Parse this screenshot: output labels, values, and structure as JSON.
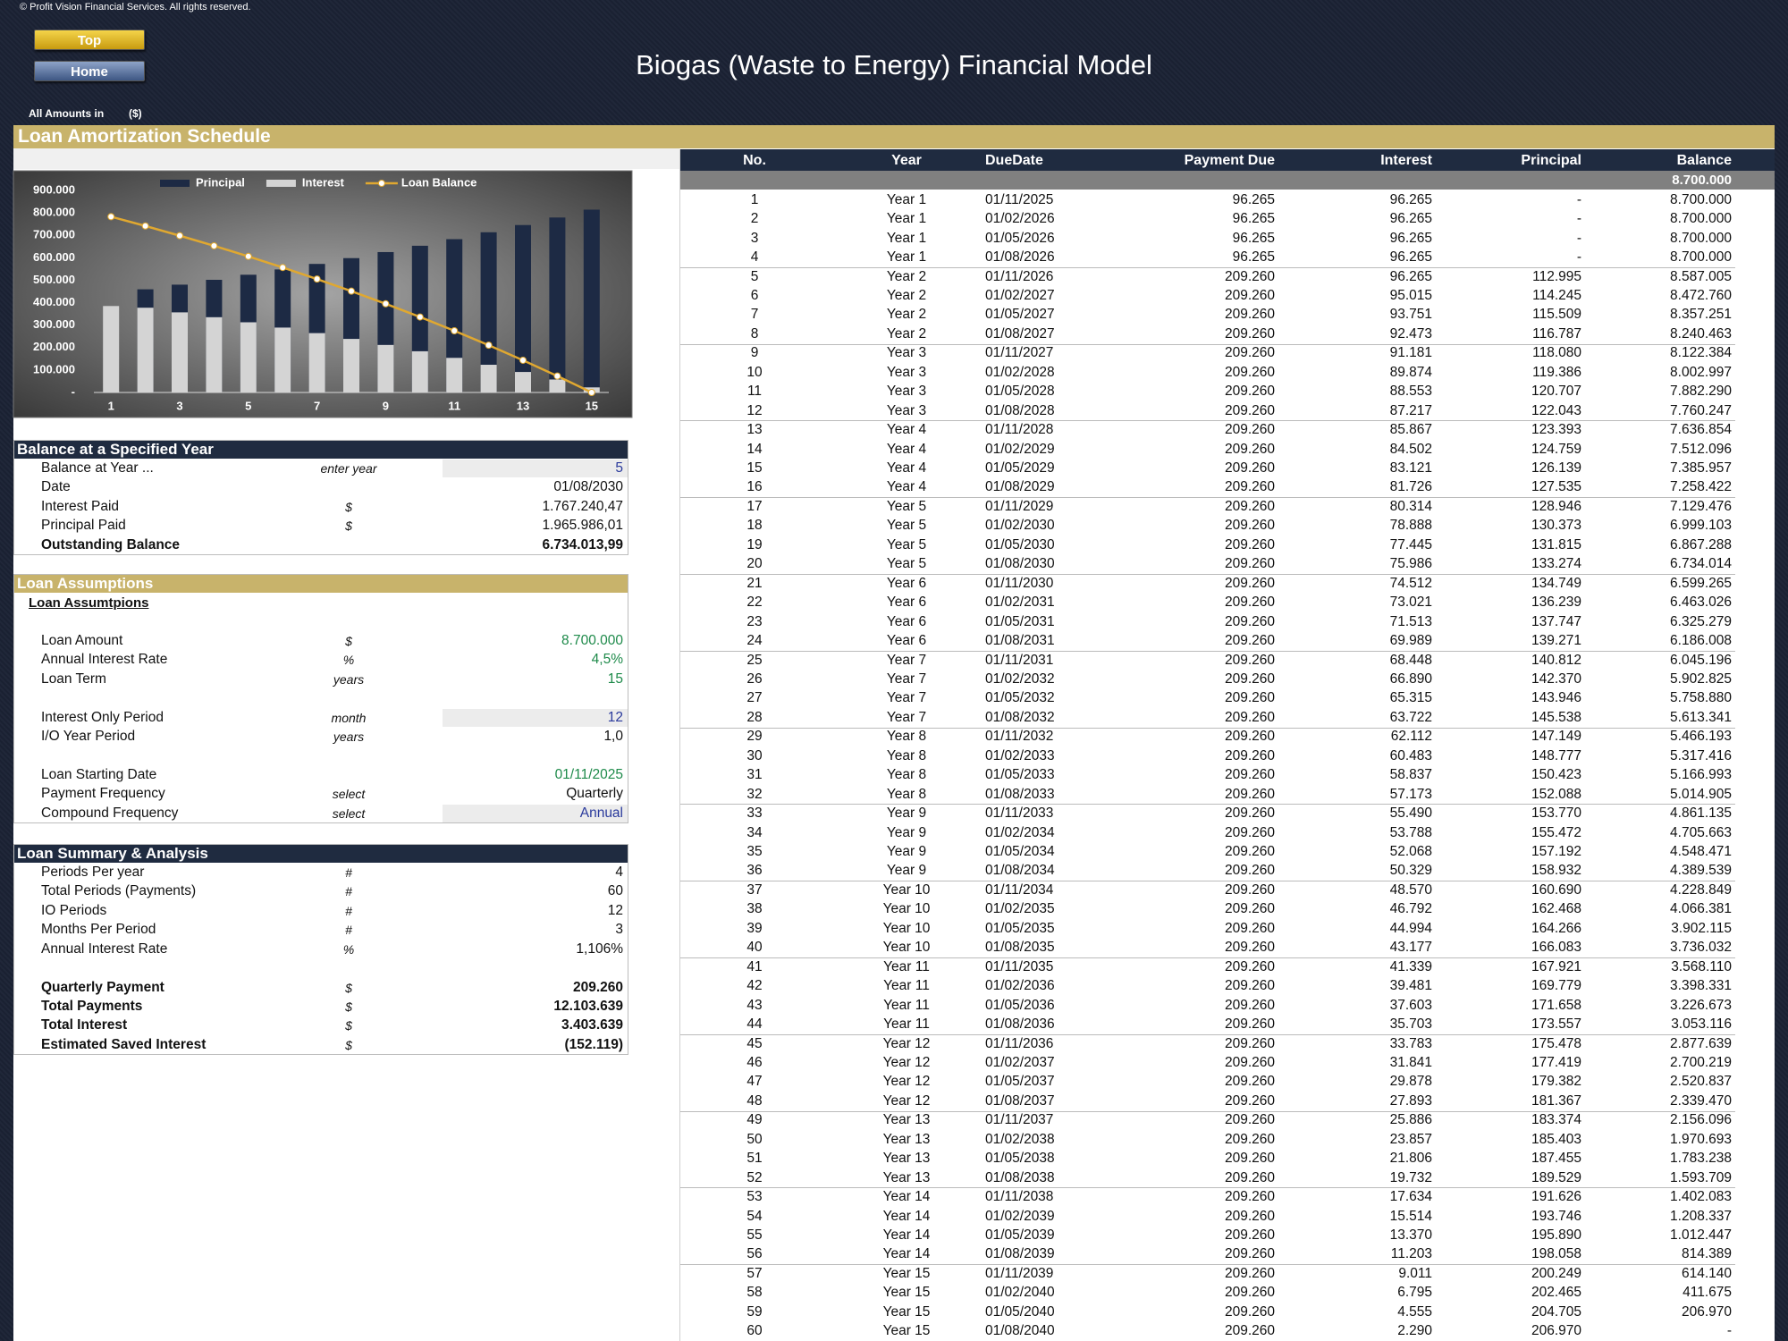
{
  "header": {
    "copyright": "© Profit Vision Financial Services. All rights reserved.",
    "buttons": [
      "Top",
      "Home"
    ],
    "title": "Biogas (Waste to Energy) Financial Model",
    "amounts_label": "All Amounts in",
    "currency": "($)"
  },
  "section_title": "Loan Amortization Schedule",
  "chart_data": {
    "type": "bar",
    "legend": "top",
    "grid": false,
    "categories": [
      1,
      null,
      3,
      null,
      5,
      null,
      7,
      null,
      9,
      null,
      11,
      null,
      13,
      null,
      15
    ],
    "series": [
      {
        "name": "Principal",
        "color": "#1d2a44",
        "values": [
          0,
          459536,
          480216,
          501826,
          524408,
          548006,
          572666,
          598437,
          625366,
          653507,
          682915,
          713646,
          745761,
          779320,
          814389
        ]
      },
      {
        "name": "Interest",
        "color": "#d4d4d4",
        "values": [
          385060,
          377504,
          356825,
          335216,
          312633,
          289035,
          264375,
          238605,
          211675,
          183533,
          154126,
          123395,
          91281,
          57721,
          22651
        ]
      },
      {
        "name": "Loan Balance",
        "type": "line",
        "axis": "y2",
        "color": "#e0a830",
        "values": [
          8700000,
          8240463,
          7760247,
          7258422,
          6734014,
          6186008,
          5613341,
          5014905,
          4389539,
          3736032,
          3053116,
          2339470,
          1593709,
          814389,
          0
        ]
      }
    ],
    "ylim": [
      0,
      900000
    ],
    "yticks": [
      {
        "value": 0,
        "label": "-"
      },
      {
        "value": 100000,
        "label": "100.000"
      },
      {
        "value": 200000,
        "label": "200.000"
      },
      {
        "value": 300000,
        "label": "300.000"
      },
      {
        "value": 400000,
        "label": "400.000"
      },
      {
        "value": 500000,
        "label": "500.000"
      },
      {
        "value": 600000,
        "label": "600.000"
      },
      {
        "value": 700000,
        "label": "700.000"
      },
      {
        "value": 800000,
        "label": "800.000"
      },
      {
        "value": 900000,
        "label": "900.000"
      }
    ],
    "y2lim": [
      0,
      10000000
    ]
  },
  "balance_panel": {
    "title": "Balance at a Specified Year",
    "rows": [
      {
        "label": "Balance at Year ...",
        "unit": "enter year",
        "value": "5",
        "color": "#2a3a9c",
        "shaded": true
      },
      {
        "label": "Date",
        "value": "01/08/2030"
      },
      {
        "label": "Interest Paid",
        "unit": "$",
        "value": "1.767.240,47"
      },
      {
        "label": "Principal Paid",
        "unit": "$",
        "value": "1.965.986,01"
      },
      {
        "label": "Outstanding Balance",
        "value": "6.734.013,99",
        "bold": true
      }
    ]
  },
  "assumptions_panel": {
    "title": "Loan Assumptions",
    "subtitle": "Loan Assumtpions",
    "groups": [
      [
        {
          "label": "Loan Amount",
          "unit": "$",
          "value": "8.700.000",
          "color": "#1e8a4a"
        },
        {
          "label": "Annual Interest Rate",
          "unit": "%",
          "value": "4,5%",
          "color": "#1e8a4a"
        },
        {
          "label": "Loan Term",
          "unit": "years",
          "value": "15",
          "color": "#1e8a4a"
        }
      ],
      [
        {
          "label": "Interest Only Period",
          "unit": "month",
          "value": "12",
          "color": "#2a3a9c",
          "shaded": true
        },
        {
          "label": "I/O Year Period",
          "unit": "years",
          "value": "1,0"
        }
      ],
      [
        {
          "label": "Loan Starting Date",
          "value": "01/11/2025",
          "color": "#1e8a4a"
        },
        {
          "label": "Payment Frequency",
          "unit": "select",
          "value": "Quarterly"
        },
        {
          "label": "Compound Frequency",
          "unit": "select",
          "value": "Annual",
          "color": "#2a3a9c",
          "shaded": true
        }
      ]
    ]
  },
  "summary_panel": {
    "title": "Loan Summary & Analysis",
    "groups": [
      [
        {
          "label": "Periods Per year",
          "unit": "#",
          "value": "4"
        },
        {
          "label": "Total Periods (Payments)",
          "unit": "#",
          "value": "60"
        },
        {
          "label": "IO Periods",
          "unit": "#",
          "value": "12"
        },
        {
          "label": "Months Per Period",
          "unit": "#",
          "value": "3"
        },
        {
          "label": "Annual Interest Rate",
          "unit": "%",
          "value": "1,106%"
        }
      ],
      [
        {
          "label": "Quarterly  Payment",
          "unit": "$",
          "value": "209.260",
          "bold": true
        },
        {
          "label": "Total Payments",
          "unit": "$",
          "value": "12.103.639",
          "bold": true
        },
        {
          "label": "Total Interest",
          "unit": "$",
          "value": "3.403.639",
          "bold": true
        },
        {
          "label": "Estimated Saved Interest",
          "unit": "$",
          "value": "(152.119)",
          "bold": true
        }
      ]
    ]
  },
  "schedule": {
    "columns": [
      "No.",
      "Year",
      "DueDate",
      "Payment Due",
      "Interest",
      "Principal",
      "Balance"
    ],
    "opening_balance": "8.700.000",
    "rows": [
      [
        "1",
        "Year 1",
        "01/11/2025",
        "96.265",
        "96.265",
        "-",
        "8.700.000"
      ],
      [
        "2",
        "Year 1",
        "01/02/2026",
        "96.265",
        "96.265",
        "-",
        "8.700.000"
      ],
      [
        "3",
        "Year 1",
        "01/05/2026",
        "96.265",
        "96.265",
        "-",
        "8.700.000"
      ],
      [
        "4",
        "Year 1",
        "01/08/2026",
        "96.265",
        "96.265",
        "-",
        "8.700.000"
      ],
      [
        "5",
        "Year 2",
        "01/11/2026",
        "209.260",
        "96.265",
        "112.995",
        "8.587.005"
      ],
      [
        "6",
        "Year 2",
        "01/02/2027",
        "209.260",
        "95.015",
        "114.245",
        "8.472.760"
      ],
      [
        "7",
        "Year 2",
        "01/05/2027",
        "209.260",
        "93.751",
        "115.509",
        "8.357.251"
      ],
      [
        "8",
        "Year 2",
        "01/08/2027",
        "209.260",
        "92.473",
        "116.787",
        "8.240.463"
      ],
      [
        "9",
        "Year 3",
        "01/11/2027",
        "209.260",
        "91.181",
        "118.080",
        "8.122.384"
      ],
      [
        "10",
        "Year 3",
        "01/02/2028",
        "209.260",
        "89.874",
        "119.386",
        "8.002.997"
      ],
      [
        "11",
        "Year 3",
        "01/05/2028",
        "209.260",
        "88.553",
        "120.707",
        "7.882.290"
      ],
      [
        "12",
        "Year 3",
        "01/08/2028",
        "209.260",
        "87.217",
        "122.043",
        "7.760.247"
      ],
      [
        "13",
        "Year 4",
        "01/11/2028",
        "209.260",
        "85.867",
        "123.393",
        "7.636.854"
      ],
      [
        "14",
        "Year 4",
        "01/02/2029",
        "209.260",
        "84.502",
        "124.759",
        "7.512.096"
      ],
      [
        "15",
        "Year 4",
        "01/05/2029",
        "209.260",
        "83.121",
        "126.139",
        "7.385.957"
      ],
      [
        "16",
        "Year 4",
        "01/08/2029",
        "209.260",
        "81.726",
        "127.535",
        "7.258.422"
      ],
      [
        "17",
        "Year 5",
        "01/11/2029",
        "209.260",
        "80.314",
        "128.946",
        "7.129.476"
      ],
      [
        "18",
        "Year 5",
        "01/02/2030",
        "209.260",
        "78.888",
        "130.373",
        "6.999.103"
      ],
      [
        "19",
        "Year 5",
        "01/05/2030",
        "209.260",
        "77.445",
        "131.815",
        "6.867.288"
      ],
      [
        "20",
        "Year 5",
        "01/08/2030",
        "209.260",
        "75.986",
        "133.274",
        "6.734.014"
      ],
      [
        "21",
        "Year 6",
        "01/11/2030",
        "209.260",
        "74.512",
        "134.749",
        "6.599.265"
      ],
      [
        "22",
        "Year 6",
        "01/02/2031",
        "209.260",
        "73.021",
        "136.239",
        "6.463.026"
      ],
      [
        "23",
        "Year 6",
        "01/05/2031",
        "209.260",
        "71.513",
        "137.747",
        "6.325.279"
      ],
      [
        "24",
        "Year 6",
        "01/08/2031",
        "209.260",
        "69.989",
        "139.271",
        "6.186.008"
      ],
      [
        "25",
        "Year 7",
        "01/11/2031",
        "209.260",
        "68.448",
        "140.812",
        "6.045.196"
      ],
      [
        "26",
        "Year 7",
        "01/02/2032",
        "209.260",
        "66.890",
        "142.370",
        "5.902.825"
      ],
      [
        "27",
        "Year 7",
        "01/05/2032",
        "209.260",
        "65.315",
        "143.946",
        "5.758.880"
      ],
      [
        "28",
        "Year 7",
        "01/08/2032",
        "209.260",
        "63.722",
        "145.538",
        "5.613.341"
      ],
      [
        "29",
        "Year 8",
        "01/11/2032",
        "209.260",
        "62.112",
        "147.149",
        "5.466.193"
      ],
      [
        "30",
        "Year 8",
        "01/02/2033",
        "209.260",
        "60.483",
        "148.777",
        "5.317.416"
      ],
      [
        "31",
        "Year 8",
        "01/05/2033",
        "209.260",
        "58.837",
        "150.423",
        "5.166.993"
      ],
      [
        "32",
        "Year 8",
        "01/08/2033",
        "209.260",
        "57.173",
        "152.088",
        "5.014.905"
      ],
      [
        "33",
        "Year 9",
        "01/11/2033",
        "209.260",
        "55.490",
        "153.770",
        "4.861.135"
      ],
      [
        "34",
        "Year 9",
        "01/02/2034",
        "209.260",
        "53.788",
        "155.472",
        "4.705.663"
      ],
      [
        "35",
        "Year 9",
        "01/05/2034",
        "209.260",
        "52.068",
        "157.192",
        "4.548.471"
      ],
      [
        "36",
        "Year 9",
        "01/08/2034",
        "209.260",
        "50.329",
        "158.932",
        "4.389.539"
      ],
      [
        "37",
        "Year 10",
        "01/11/2034",
        "209.260",
        "48.570",
        "160.690",
        "4.228.849"
      ],
      [
        "38",
        "Year 10",
        "01/02/2035",
        "209.260",
        "46.792",
        "162.468",
        "4.066.381"
      ],
      [
        "39",
        "Year 10",
        "01/05/2035",
        "209.260",
        "44.994",
        "164.266",
        "3.902.115"
      ],
      [
        "40",
        "Year 10",
        "01/08/2035",
        "209.260",
        "43.177",
        "166.083",
        "3.736.032"
      ],
      [
        "41",
        "Year 11",
        "01/11/2035",
        "209.260",
        "41.339",
        "167.921",
        "3.568.110"
      ],
      [
        "42",
        "Year 11",
        "01/02/2036",
        "209.260",
        "39.481",
        "169.779",
        "3.398.331"
      ],
      [
        "43",
        "Year 11",
        "01/05/2036",
        "209.260",
        "37.603",
        "171.658",
        "3.226.673"
      ],
      [
        "44",
        "Year 11",
        "01/08/2036",
        "209.260",
        "35.703",
        "173.557",
        "3.053.116"
      ],
      [
        "45",
        "Year 12",
        "01/11/2036",
        "209.260",
        "33.783",
        "175.478",
        "2.877.639"
      ],
      [
        "46",
        "Year 12",
        "01/02/2037",
        "209.260",
        "31.841",
        "177.419",
        "2.700.219"
      ],
      [
        "47",
        "Year 12",
        "01/05/2037",
        "209.260",
        "29.878",
        "179.382",
        "2.520.837"
      ],
      [
        "48",
        "Year 12",
        "01/08/2037",
        "209.260",
        "27.893",
        "181.367",
        "2.339.470"
      ],
      [
        "49",
        "Year 13",
        "01/11/2037",
        "209.260",
        "25.886",
        "183.374",
        "2.156.096"
      ],
      [
        "50",
        "Year 13",
        "01/02/2038",
        "209.260",
        "23.857",
        "185.403",
        "1.970.693"
      ],
      [
        "51",
        "Year 13",
        "01/05/2038",
        "209.260",
        "21.806",
        "187.455",
        "1.783.238"
      ],
      [
        "52",
        "Year 13",
        "01/08/2038",
        "209.260",
        "19.732",
        "189.529",
        "1.593.709"
      ],
      [
        "53",
        "Year 14",
        "01/11/2038",
        "209.260",
        "17.634",
        "191.626",
        "1.402.083"
      ],
      [
        "54",
        "Year 14",
        "01/02/2039",
        "209.260",
        "15.514",
        "193.746",
        "1.208.337"
      ],
      [
        "55",
        "Year 14",
        "01/05/2039",
        "209.260",
        "13.370",
        "195.890",
        "1.012.447"
      ],
      [
        "56",
        "Year 14",
        "01/08/2039",
        "209.260",
        "11.203",
        "198.058",
        "814.389"
      ],
      [
        "57",
        "Year 15",
        "01/11/2039",
        "209.260",
        "9.011",
        "200.249",
        "614.140"
      ],
      [
        "58",
        "Year 15",
        "01/02/2040",
        "209.260",
        "6.795",
        "202.465",
        "411.675"
      ],
      [
        "59",
        "Year 15",
        "01/05/2040",
        "209.260",
        "4.555",
        "204.705",
        "206.970"
      ],
      [
        "60",
        "Year 15",
        "01/08/2040",
        "209.260",
        "2.290",
        "206.970",
        "-"
      ]
    ]
  }
}
